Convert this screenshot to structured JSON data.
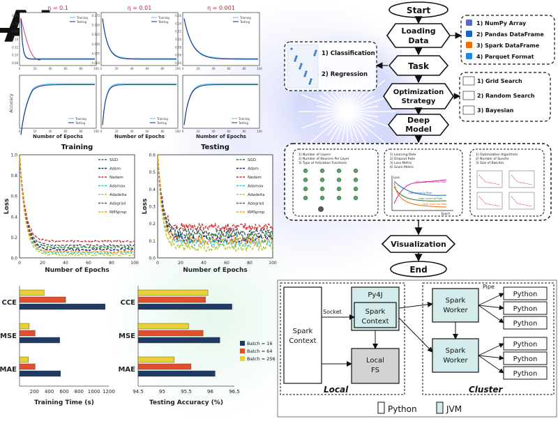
{
  "logo": {
    "text": "AI"
  },
  "small_panels": {
    "titles": [
      "η = 0.1",
      "η = 0.01",
      "η = 0.001"
    ],
    "ylabel_accuracy": "Accuracy",
    "xlabel": "Number of Epochs",
    "legend": [
      "Training",
      "Testing"
    ],
    "top_yticks": [
      [
        "0.20",
        "0.18",
        "0.16",
        "0.14",
        "0.12",
        "0.10",
        "0.08"
      ],
      [
        "0.175",
        "0.150",
        "0.125",
        "0.100",
        "0.075",
        "0.050"
      ],
      [
        "0.16",
        "0.14",
        "0.12",
        "0.10",
        "0.08",
        "0.06",
        "0.04"
      ]
    ],
    "xticks": [
      "0",
      "20",
      "40",
      "60",
      "80",
      "100"
    ]
  },
  "loss_charts": {
    "chart_data": [
      {
        "type": "line",
        "title": "Training",
        "xlabel": "Number of Epochs",
        "ylabel": "Loss",
        "xlim": [
          0,
          100
        ],
        "ylim": [
          0,
          1.0
        ],
        "xticks": [
          "0",
          "20",
          "40",
          "60",
          "80",
          "100"
        ],
        "yticks": [
          "0.0",
          "0.2",
          "0.4",
          "0.6",
          "0.8",
          "1.0"
        ],
        "series": [
          {
            "name": "SGD",
            "color": "#2e7d32",
            "final": 0.1
          },
          {
            "name": "Adam",
            "color": "#1a237e",
            "final": 0.08
          },
          {
            "name": "Nadam",
            "color": "#d32f2f",
            "final": 0.16
          },
          {
            "name": "Adamax",
            "color": "#26c6da",
            "final": 0.05
          },
          {
            "name": "Adadelta",
            "color": "#b2c73a",
            "final": 0.03
          },
          {
            "name": "Adagrad",
            "color": "#455a64",
            "final": 0.12
          },
          {
            "name": "RMSprop",
            "color": "#ff9800",
            "final": 0.06
          }
        ]
      },
      {
        "type": "line",
        "title": "Testing",
        "xlabel": "Number of Epochs",
        "ylabel": "Loss",
        "xlim": [
          0,
          100
        ],
        "ylim": [
          0,
          0.6
        ],
        "xticks": [
          "0",
          "20",
          "40",
          "60",
          "80",
          "100"
        ],
        "yticks": [
          "0.0",
          "0.1",
          "0.2",
          "0.3",
          "0.4",
          "0.5",
          "0.6"
        ],
        "series": [
          {
            "name": "SGD",
            "color": "#2e7d32",
            "final": 0.13
          },
          {
            "name": "Adam",
            "color": "#1a237e",
            "final": 0.11
          },
          {
            "name": "Nadam",
            "color": "#d32f2f",
            "final": 0.18
          },
          {
            "name": "Adamax",
            "color": "#26c6da",
            "final": 0.09
          },
          {
            "name": "Adadelta",
            "color": "#b2c73a",
            "final": 0.06
          },
          {
            "name": "Adagrad",
            "color": "#455a64",
            "final": 0.15
          },
          {
            "name": "RMSprop",
            "color": "#ff9800",
            "final": 0.1
          }
        ]
      }
    ]
  },
  "bar_charts": {
    "legend": [
      {
        "label": "Batch = 16",
        "color": "#1f3b63"
      },
      {
        "label": "Batch = 64",
        "color": "#e0512a"
      },
      {
        "label": "Batch = 256",
        "color": "#e8d234"
      }
    ],
    "chart_data": [
      {
        "type": "bar",
        "orientation": "horizontal",
        "xlabel": "Training Time (s)",
        "categories": [
          "CCE",
          "MSE",
          "MAE"
        ],
        "xlim": [
          0,
          1200
        ],
        "xticks": [
          "200",
          "400",
          "600",
          "800",
          "1000",
          "1200"
        ],
        "series": [
          {
            "name": "Batch = 256",
            "values": [
              330,
              130,
              120
            ]
          },
          {
            "name": "Batch = 64",
            "values": [
              620,
              210,
              210
            ]
          },
          {
            "name": "Batch = 16",
            "values": [
              1150,
              540,
              550
            ]
          }
        ]
      },
      {
        "type": "bar",
        "orientation": "horizontal",
        "xlabel": "Testing Accuracy (%)",
        "categories": [
          "CCE",
          "MSE",
          "MAE"
        ],
        "xlim": [
          94.5,
          96.5
        ],
        "xticks": [
          "94.5",
          "95",
          "95.5",
          "96",
          "96.5"
        ],
        "series": [
          {
            "name": "Batch = 256",
            "values": [
              95.95,
              95.55,
              95.25
            ]
          },
          {
            "name": "Batch = 64",
            "values": [
              95.9,
              95.85,
              95.6
            ]
          },
          {
            "name": "Batch = 16",
            "values": [
              96.45,
              96.2,
              96.1
            ]
          }
        ]
      }
    ]
  },
  "flow": {
    "steps": [
      "Start",
      "Loading Data",
      "Task",
      "Optimization Strategy",
      "Deep Model",
      "Visualization",
      "End"
    ],
    "data_formats": [
      "1) NumPy Array",
      "2) Pandas DataFrame",
      "3) Spark DataFrame",
      "4) Parquet Format"
    ],
    "tasks": [
      "1) Classification",
      "2) Regression"
    ],
    "search": [
      "1) Grid Search",
      "2) Random Search",
      "3) Bayesian"
    ],
    "model_box1": [
      "1) Number of Layers",
      "2) Number of Neurons Per Layer",
      "3) Type of Activation Functions"
    ],
    "model_box2": [
      "1) Learning Rate",
      "2) Dropout Rate",
      "3) Loss Metric",
      "4) Score Metric"
    ],
    "model_box2_curves": [
      "Very High Learning Rate",
      "High Learning Rate",
      "Low Learning Rate",
      "Good Learning Rate"
    ],
    "model_box2_axes": [
      "Loss",
      "Epoch"
    ],
    "model_box3": [
      "1) Optimization Algorithms",
      "2) Number of Epochs",
      "3) Size of Batches"
    ]
  },
  "spark": {
    "driver": "Spark Context",
    "py4j": "Py4J",
    "socket": "Socket",
    "spark_context_jvm": "Spark Context",
    "local_fs": "Local FS",
    "local_label": "Local",
    "cluster_label": "Cluster",
    "pipe": "Pipe",
    "worker": "Spark Worker",
    "python": "Python",
    "legend": [
      "Python",
      "JVM"
    ]
  }
}
